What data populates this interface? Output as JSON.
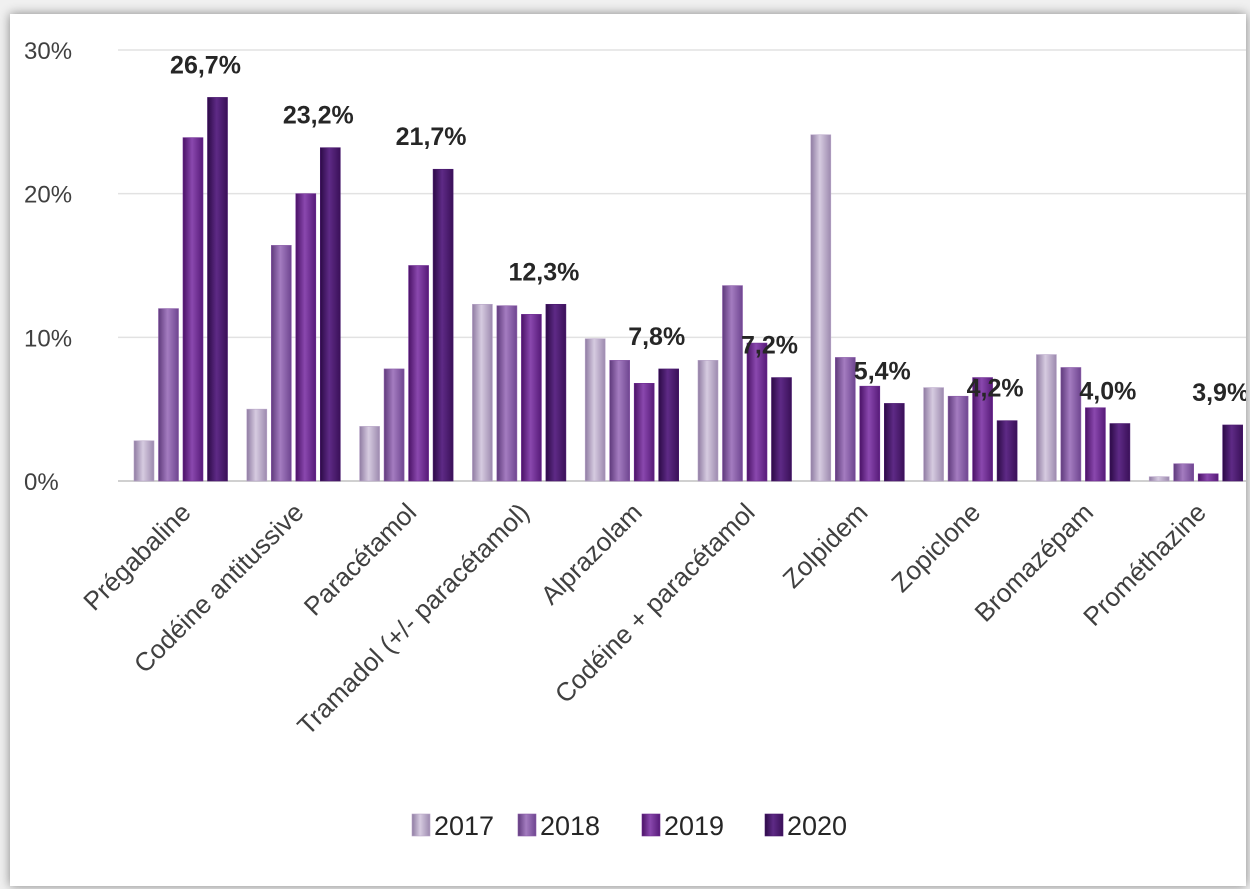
{
  "chart_data": {
    "type": "bar",
    "title": "",
    "xlabel": "",
    "ylabel": "",
    "ylim": [
      0,
      30
    ],
    "yticks": [
      "0%",
      "10%",
      "20%",
      "30%"
    ],
    "grid": true,
    "legend_position": "bottom",
    "categories": [
      "Prégabaline",
      "Codéine antitussive",
      "Paracétamol",
      "Tramadol (+/- paracétamol)",
      "Alprazolam",
      "Codéine + paracétamol",
      "Zolpidem",
      "Zopiclone",
      "Bromazépam",
      "Prométhazine"
    ],
    "series": [
      {
        "name": "2017",
        "color": "#b8a6c8",
        "values": [
          2.8,
          5.0,
          3.8,
          12.3,
          9.9,
          8.4,
          24.1,
          6.5,
          8.8,
          0.3
        ]
      },
      {
        "name": "2018",
        "color": "#8a5ca8",
        "values": [
          12.0,
          16.4,
          7.8,
          12.2,
          8.4,
          13.6,
          8.6,
          5.9,
          7.9,
          1.2
        ]
      },
      {
        "name": "2019",
        "color": "#6e2c92",
        "values": [
          23.9,
          20.0,
          15.0,
          11.6,
          6.8,
          9.6,
          6.6,
          7.2,
          5.1,
          0.5
        ]
      },
      {
        "name": "2020",
        "color": "#4a1a6e",
        "values": [
          26.7,
          23.2,
          21.7,
          12.3,
          7.8,
          7.2,
          5.4,
          4.2,
          4.0,
          3.9
        ]
      }
    ],
    "data_labels": [
      "26,7%",
      "23,2%",
      "21,7%",
      "12,3%",
      "7,8%",
      "7,2%",
      "5,4%",
      "4,2%",
      "4,0%",
      "3,9%"
    ]
  }
}
